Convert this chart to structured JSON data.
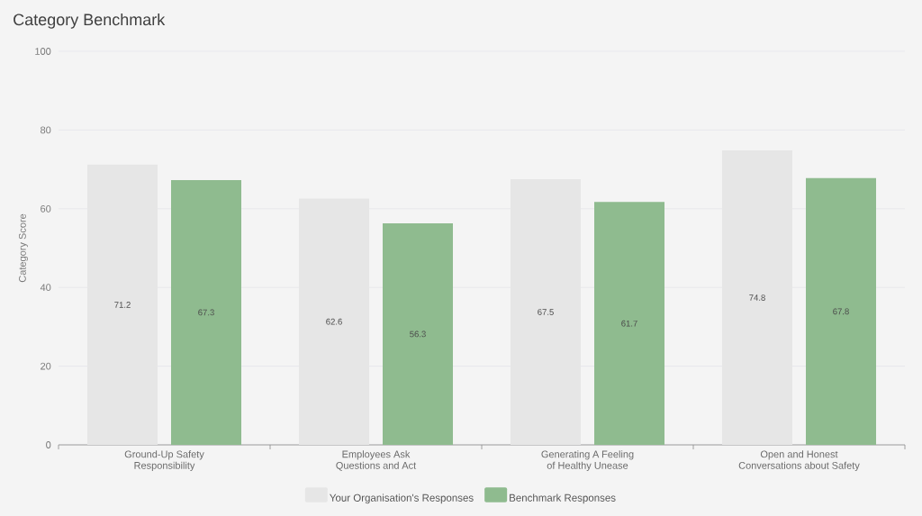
{
  "chart_data": {
    "type": "bar",
    "title": "Category Benchmark",
    "ylabel": "Category Score",
    "categories": [
      "Ground-Up Safety Responsibility",
      "Employees Ask Questions and Act",
      "Generating A Feeling of Healthy Unease",
      "Open and Honest Conversations about Safety"
    ],
    "series": [
      {
        "name": "Your Organisation's Responses",
        "color": "#e6e6e6",
        "values": [
          71.2,
          62.6,
          67.5,
          74.8
        ]
      },
      {
        "name": "Benchmark Responses",
        "color": "#8fbb8f",
        "values": [
          67.3,
          56.3,
          61.7,
          67.8
        ]
      }
    ],
    "ylim": [
      0,
      100
    ],
    "yticks": [
      0,
      20,
      40,
      60,
      80,
      100
    ],
    "grid": "y",
    "legend": "bottom",
    "data_labels": true
  }
}
